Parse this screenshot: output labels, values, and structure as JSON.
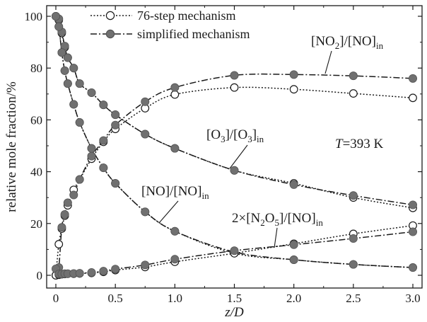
{
  "chart_data": {
    "type": "line",
    "xlabel": "z/D",
    "ylabel": "relative mole fraction/%",
    "xlim": [
      0,
      3.0
    ],
    "ylim": [
      0,
      100
    ],
    "xticks": [
      "0",
      "0.5",
      "1.0",
      "1.5",
      "2.0",
      "2.5",
      "3.0"
    ],
    "yticks": [
      "0",
      "20",
      "40",
      "60",
      "80",
      "100"
    ],
    "legend": {
      "placement": "top-left",
      "entries": [
        {
          "label": "76-step mechanism",
          "line": "dotted",
          "marker": "open-circle"
        },
        {
          "label": "simplified mechanism",
          "line": "dash-dot",
          "marker": "filled-circle"
        }
      ]
    },
    "temperature_label": {
      "italic": "T",
      "text": "=393 K"
    },
    "x": [
      0,
      0.025,
      0.05,
      0.075,
      0.1,
      0.15,
      0.2,
      0.3,
      0.4,
      0.5,
      0.75,
      1.0,
      1.5,
      2.0,
      2.5,
      3.0
    ],
    "series": [
      {
        "group": "NO2",
        "label_parts": [
          "[NO",
          "2",
          "]/[NO]",
          "in"
        ],
        "detailed": [
          0,
          12,
          18,
          23,
          27,
          33,
          37,
          45,
          51.5,
          56.5,
          64.5,
          69.8,
          72.5,
          71.8,
          70.2,
          68.5
        ],
        "simplified": [
          0,
          3,
          18.5,
          23.5,
          28,
          31,
          37,
          46,
          52,
          58,
          67,
          72.5,
          77.2,
          77.5,
          77,
          76
        ]
      },
      {
        "group": "O3",
        "label_parts": [
          "[O",
          "3",
          "]/[O",
          "3",
          "]",
          "in"
        ],
        "detailed": [
          100,
          98.5,
          93.5,
          88,
          84,
          80,
          74,
          70.5,
          65.8,
          62,
          54.5,
          49,
          40.5,
          35.5,
          30,
          26
        ],
        "simplified": [
          100,
          99,
          94,
          88.5,
          84,
          80,
          74,
          70.5,
          65.8,
          62,
          54.5,
          49,
          40.5,
          35,
          30.8,
          27.2
        ]
      },
      {
        "group": "NO",
        "label_parts": [
          "[NO]/[NO]",
          "in"
        ],
        "detailed": [
          100,
          96,
          86,
          79,
          74,
          66,
          59,
          49,
          41.5,
          35.5,
          24.5,
          17,
          8.5,
          6,
          4.2,
          3
        ],
        "simplified": [
          100,
          96,
          86,
          79,
          74,
          66,
          59,
          49,
          41.5,
          35.5,
          24.5,
          17,
          9,
          6,
          4.2,
          3
        ]
      },
      {
        "group": "N2O5",
        "label_parts": [
          "2×[N",
          "2",
          "O",
          "5",
          "]/[NO]",
          "in"
        ],
        "detailed": [
          0,
          0.2,
          0.4,
          0.5,
          0.6,
          0.6,
          0.7,
          0.9,
          1.3,
          2,
          3.2,
          5.2,
          8.5,
          12.2,
          16,
          19.2
        ],
        "simplified": [
          2.5,
          0.5,
          0.5,
          0.6,
          0.6,
          0.7,
          0.8,
          1.1,
          1.6,
          2.4,
          4,
          6.2,
          9.5,
          11.8,
          14.2,
          16.8
        ]
      }
    ]
  }
}
